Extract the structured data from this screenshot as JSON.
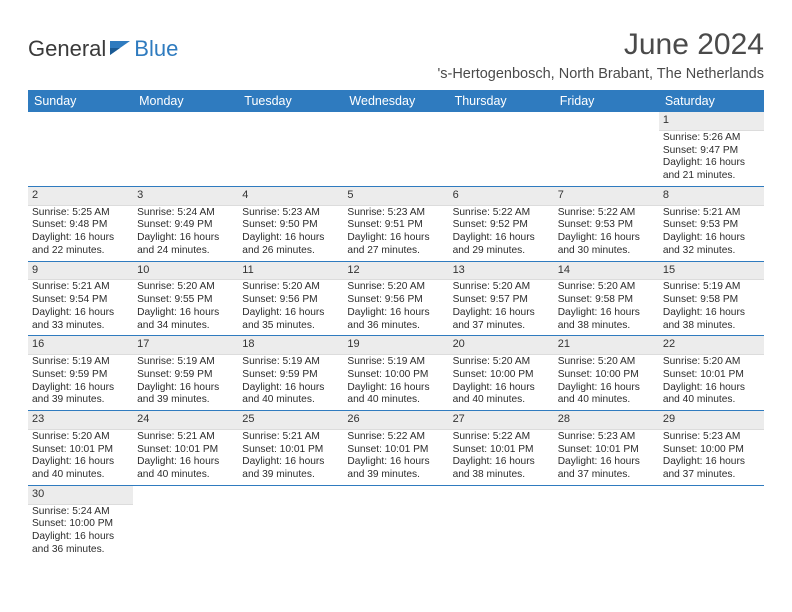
{
  "brand": {
    "name_part1": "General",
    "name_part2": "Blue"
  },
  "title": "June 2024",
  "subtitle": "'s-Hertogenbosch, North Brabant, The Netherlands",
  "colors": {
    "header_bg": "#2f7bbf",
    "header_text": "#ffffff",
    "daynum_bg": "#ececec",
    "empty_bg": "#f2f2f2",
    "row_border": "#2f7bbf",
    "text": "#2c2c2c",
    "title_text": "#4a4a4a"
  },
  "typography": {
    "title_fontsize": 30,
    "subtitle_fontsize": 14.5,
    "weekday_fontsize": 12.5,
    "cell_fontsize": 10.2
  },
  "weekdays": [
    "Sunday",
    "Monday",
    "Tuesday",
    "Wednesday",
    "Thursday",
    "Friday",
    "Saturday"
  ],
  "weeks": [
    [
      null,
      null,
      null,
      null,
      null,
      null,
      {
        "n": "1",
        "sunrise": "Sunrise: 5:26 AM",
        "sunset": "Sunset: 9:47 PM",
        "daylight": "Daylight: 16 hours and 21 minutes."
      }
    ],
    [
      {
        "n": "2",
        "sunrise": "Sunrise: 5:25 AM",
        "sunset": "Sunset: 9:48 PM",
        "daylight": "Daylight: 16 hours and 22 minutes."
      },
      {
        "n": "3",
        "sunrise": "Sunrise: 5:24 AM",
        "sunset": "Sunset: 9:49 PM",
        "daylight": "Daylight: 16 hours and 24 minutes."
      },
      {
        "n": "4",
        "sunrise": "Sunrise: 5:23 AM",
        "sunset": "Sunset: 9:50 PM",
        "daylight": "Daylight: 16 hours and 26 minutes."
      },
      {
        "n": "5",
        "sunrise": "Sunrise: 5:23 AM",
        "sunset": "Sunset: 9:51 PM",
        "daylight": "Daylight: 16 hours and 27 minutes."
      },
      {
        "n": "6",
        "sunrise": "Sunrise: 5:22 AM",
        "sunset": "Sunset: 9:52 PM",
        "daylight": "Daylight: 16 hours and 29 minutes."
      },
      {
        "n": "7",
        "sunrise": "Sunrise: 5:22 AM",
        "sunset": "Sunset: 9:53 PM",
        "daylight": "Daylight: 16 hours and 30 minutes."
      },
      {
        "n": "8",
        "sunrise": "Sunrise: 5:21 AM",
        "sunset": "Sunset: 9:53 PM",
        "daylight": "Daylight: 16 hours and 32 minutes."
      }
    ],
    [
      {
        "n": "9",
        "sunrise": "Sunrise: 5:21 AM",
        "sunset": "Sunset: 9:54 PM",
        "daylight": "Daylight: 16 hours and 33 minutes."
      },
      {
        "n": "10",
        "sunrise": "Sunrise: 5:20 AM",
        "sunset": "Sunset: 9:55 PM",
        "daylight": "Daylight: 16 hours and 34 minutes."
      },
      {
        "n": "11",
        "sunrise": "Sunrise: 5:20 AM",
        "sunset": "Sunset: 9:56 PM",
        "daylight": "Daylight: 16 hours and 35 minutes."
      },
      {
        "n": "12",
        "sunrise": "Sunrise: 5:20 AM",
        "sunset": "Sunset: 9:56 PM",
        "daylight": "Daylight: 16 hours and 36 minutes."
      },
      {
        "n": "13",
        "sunrise": "Sunrise: 5:20 AM",
        "sunset": "Sunset: 9:57 PM",
        "daylight": "Daylight: 16 hours and 37 minutes."
      },
      {
        "n": "14",
        "sunrise": "Sunrise: 5:20 AM",
        "sunset": "Sunset: 9:58 PM",
        "daylight": "Daylight: 16 hours and 38 minutes."
      },
      {
        "n": "15",
        "sunrise": "Sunrise: 5:19 AM",
        "sunset": "Sunset: 9:58 PM",
        "daylight": "Daylight: 16 hours and 38 minutes."
      }
    ],
    [
      {
        "n": "16",
        "sunrise": "Sunrise: 5:19 AM",
        "sunset": "Sunset: 9:59 PM",
        "daylight": "Daylight: 16 hours and 39 minutes."
      },
      {
        "n": "17",
        "sunrise": "Sunrise: 5:19 AM",
        "sunset": "Sunset: 9:59 PM",
        "daylight": "Daylight: 16 hours and 39 minutes."
      },
      {
        "n": "18",
        "sunrise": "Sunrise: 5:19 AM",
        "sunset": "Sunset: 9:59 PM",
        "daylight": "Daylight: 16 hours and 40 minutes."
      },
      {
        "n": "19",
        "sunrise": "Sunrise: 5:19 AM",
        "sunset": "Sunset: 10:00 PM",
        "daylight": "Daylight: 16 hours and 40 minutes."
      },
      {
        "n": "20",
        "sunrise": "Sunrise: 5:20 AM",
        "sunset": "Sunset: 10:00 PM",
        "daylight": "Daylight: 16 hours and 40 minutes."
      },
      {
        "n": "21",
        "sunrise": "Sunrise: 5:20 AM",
        "sunset": "Sunset: 10:00 PM",
        "daylight": "Daylight: 16 hours and 40 minutes."
      },
      {
        "n": "22",
        "sunrise": "Sunrise: 5:20 AM",
        "sunset": "Sunset: 10:01 PM",
        "daylight": "Daylight: 16 hours and 40 minutes."
      }
    ],
    [
      {
        "n": "23",
        "sunrise": "Sunrise: 5:20 AM",
        "sunset": "Sunset: 10:01 PM",
        "daylight": "Daylight: 16 hours and 40 minutes."
      },
      {
        "n": "24",
        "sunrise": "Sunrise: 5:21 AM",
        "sunset": "Sunset: 10:01 PM",
        "daylight": "Daylight: 16 hours and 40 minutes."
      },
      {
        "n": "25",
        "sunrise": "Sunrise: 5:21 AM",
        "sunset": "Sunset: 10:01 PM",
        "daylight": "Daylight: 16 hours and 39 minutes."
      },
      {
        "n": "26",
        "sunrise": "Sunrise: 5:22 AM",
        "sunset": "Sunset: 10:01 PM",
        "daylight": "Daylight: 16 hours and 39 minutes."
      },
      {
        "n": "27",
        "sunrise": "Sunrise: 5:22 AM",
        "sunset": "Sunset: 10:01 PM",
        "daylight": "Daylight: 16 hours and 38 minutes."
      },
      {
        "n": "28",
        "sunrise": "Sunrise: 5:23 AM",
        "sunset": "Sunset: 10:01 PM",
        "daylight": "Daylight: 16 hours and 37 minutes."
      },
      {
        "n": "29",
        "sunrise": "Sunrise: 5:23 AM",
        "sunset": "Sunset: 10:00 PM",
        "daylight": "Daylight: 16 hours and 37 minutes."
      }
    ],
    [
      {
        "n": "30",
        "sunrise": "Sunrise: 5:24 AM",
        "sunset": "Sunset: 10:00 PM",
        "daylight": "Daylight: 16 hours and 36 minutes."
      },
      null,
      null,
      null,
      null,
      null,
      null
    ]
  ]
}
